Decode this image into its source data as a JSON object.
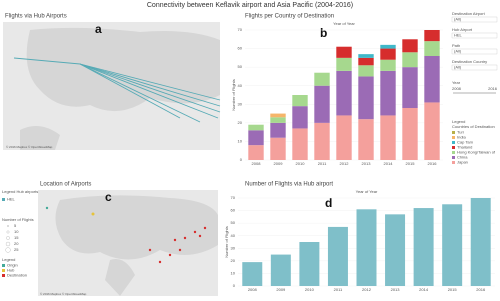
{
  "title": "Connectivity between Keflavik airport and Asia Pacific (2004-2016)",
  "panels": {
    "a": {
      "label": "a",
      "title": "Flights via Hub Airports",
      "credit": "© 2016 Mapbox © OpenStreetMap"
    },
    "b": {
      "label": "b"
    },
    "c": {
      "label": "c",
      "title": "Location of Airports",
      "credit": "© 2016 Mapbox © OpenStreetMap"
    },
    "d": {
      "label": "d"
    }
  },
  "filters": [
    {
      "title": "Destination Airport",
      "value": "(All)"
    },
    {
      "title": "Hub Airport",
      "value": "HEL"
    },
    {
      "title": "Path",
      "value": "(All)"
    },
    {
      "title": "Destination Country",
      "value": "(All)"
    }
  ],
  "year_filter": {
    "title": "Year",
    "from": "2008",
    "to": "2016"
  },
  "legend_panel": {
    "title": "Legend",
    "subtitle": "Countries of Destination"
  },
  "hub_legend": {
    "title": "Legend Hub airports",
    "items": [
      "HEL"
    ]
  },
  "size_legend": {
    "title": "Number of Flights",
    "items": [
      "5",
      "10",
      "15",
      "20",
      "25"
    ]
  },
  "location_legend": {
    "title": "Legend",
    "items": [
      "Origin",
      "Hub",
      "Destination"
    ]
  },
  "chart_data": [
    {
      "type": "stacked_bar",
      "title": "Flights per Country of Destination",
      "x_label": "Year of Year",
      "y_label": "Number of Flights",
      "categories": [
        "2008",
        "2009",
        "2010",
        "2011",
        "2012",
        "2013",
        "2014",
        "2015",
        "2016"
      ],
      "series": [
        {
          "name": "Japan",
          "color": "#f4a09c",
          "values": [
            8,
            12,
            17,
            20,
            24,
            22,
            24,
            28,
            31
          ]
        },
        {
          "name": "China",
          "color": "#9b6bb5",
          "values": [
            8,
            8,
            12,
            20,
            24,
            23,
            24,
            22,
            25
          ]
        },
        {
          "name": "Hong Kong/Taiwan of",
          "color": "#a6d88e",
          "values": [
            3,
            3,
            6,
            7,
            7,
            6,
            6,
            8,
            8
          ]
        },
        {
          "name": "Thailand",
          "color": "#d62d2d",
          "values": [
            0,
            0,
            0,
            0,
            6,
            4,
            6,
            7,
            6
          ]
        },
        {
          "name": "Cap Tam",
          "color": "#3fb8c9",
          "values": [
            0,
            0,
            0,
            0,
            0,
            2,
            2,
            0,
            0
          ]
        },
        {
          "name": "India",
          "color": "#f5b56a",
          "values": [
            0,
            2,
            0,
            0,
            0,
            0,
            0,
            0,
            0
          ]
        },
        {
          "name": "Turi",
          "color": "#b8b04a",
          "values": [
            0,
            0,
            0,
            0,
            0,
            0,
            0,
            0,
            0
          ]
        }
      ],
      "ylim": [
        0,
        70
      ],
      "yticks": [
        0,
        10,
        20,
        30,
        40,
        50,
        60,
        70
      ],
      "grid": true
    },
    {
      "type": "bar",
      "title": "Number of Flights via Hub airport",
      "x_label": "Year of Year",
      "y_label": "Number of Flights",
      "categories": [
        "2008",
        "2009",
        "2010",
        "2011",
        "2012",
        "2013",
        "2014",
        "2015",
        "2016"
      ],
      "values": [
        19,
        25,
        35,
        47,
        61,
        57,
        62,
        65,
        70
      ],
      "color": "#7fbfc9",
      "ylim": [
        0,
        70
      ],
      "yticks": [
        0,
        10,
        20,
        30,
        40,
        50,
        60,
        70
      ],
      "grid": true
    }
  ]
}
